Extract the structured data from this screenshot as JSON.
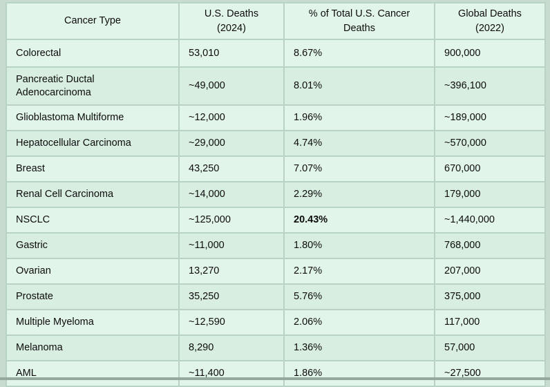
{
  "chart_data": {
    "type": "table",
    "columns": [
      {
        "label": "Cancer Type"
      },
      {
        "label": "U.S. Deaths\n(2024)"
      },
      {
        "label": "% of Total U.S. Cancer\nDeaths"
      },
      {
        "label": "Global Deaths\n(2022)"
      }
    ],
    "rows": [
      {
        "cancer_type": "Colorectal",
        "us_deaths": "53,010",
        "pct_total": "8.67%",
        "global_deaths": "900,000"
      },
      {
        "cancer_type": "Pancreatic Ductal Adenocarcinoma",
        "us_deaths": "~49,000",
        "pct_total": "8.01%",
        "global_deaths": "~396,100"
      },
      {
        "cancer_type": "Glioblastoma Multiforme",
        "us_deaths": "~12,000",
        "pct_total": "1.96%",
        "global_deaths": "~189,000"
      },
      {
        "cancer_type": "Hepatocellular Carcinoma",
        "us_deaths": "~29,000",
        "pct_total": "4.74%",
        "global_deaths": "~570,000"
      },
      {
        "cancer_type": "Breast",
        "us_deaths": "43,250",
        "pct_total": "7.07%",
        "global_deaths": "670,000"
      },
      {
        "cancer_type": "Renal Cell Carcinoma",
        "us_deaths": "~14,000",
        "pct_total": "2.29%",
        "global_deaths": "179,000"
      },
      {
        "cancer_type": "NSCLC",
        "us_deaths": "~125,000",
        "pct_total": "20.43%",
        "global_deaths": "~1,440,000",
        "pct_bold": true
      },
      {
        "cancer_type": "Gastric",
        "us_deaths": "~11,000",
        "pct_total": "1.80%",
        "global_deaths": "768,000"
      },
      {
        "cancer_type": "Ovarian",
        "us_deaths": "13,270",
        "pct_total": "2.17%",
        "global_deaths": "207,000"
      },
      {
        "cancer_type": "Prostate",
        "us_deaths": "35,250",
        "pct_total": "5.76%",
        "global_deaths": "375,000"
      },
      {
        "cancer_type": "Multiple Myeloma",
        "us_deaths": "~12,590",
        "pct_total": "2.06%",
        "global_deaths": "117,000"
      },
      {
        "cancer_type": "Melanoma",
        "us_deaths": "8,290",
        "pct_total": "1.36%",
        "global_deaths": "57,000"
      },
      {
        "cancer_type": "AML",
        "us_deaths": "~11,400",
        "pct_total": "1.86%",
        "global_deaths": "~27,500"
      }
    ]
  },
  "colors": {
    "page_background": "#c7dbce",
    "cell_background": "#e2f5ea",
    "cell_background_shaded": "#d8eee1",
    "border": "#b8d2c5",
    "text": "#0c0c0c",
    "bottom_edge": "#95a99e"
  }
}
